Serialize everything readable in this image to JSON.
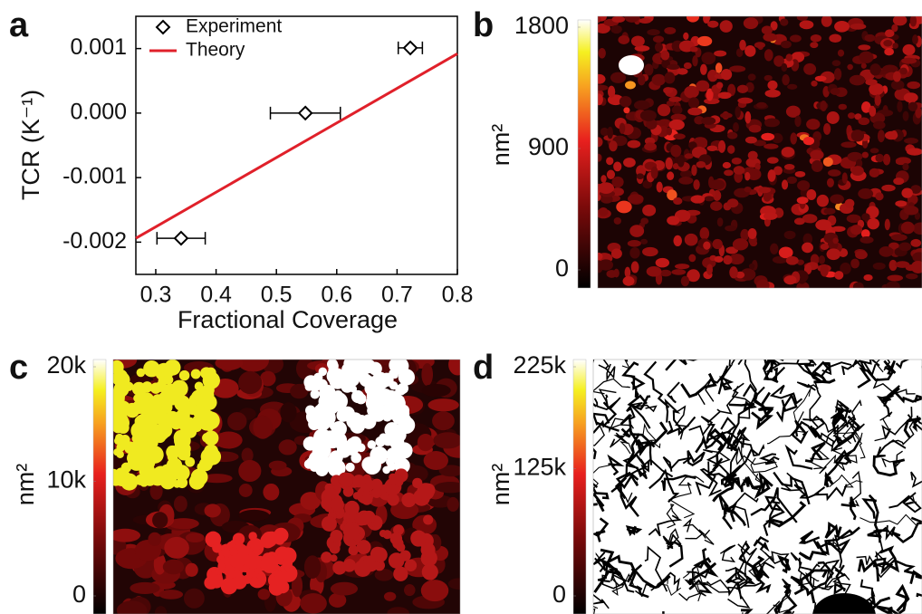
{
  "chart_data": [
    {
      "type": "scatter",
      "panel": "a",
      "xlabel": "Fractional Coverage",
      "ylabel": "TCR (K⁻¹)",
      "xlim": [
        0.267,
        0.8
      ],
      "ylim": [
        -0.0025,
        0.0015
      ],
      "xticks": [
        0.3,
        0.4,
        0.5,
        0.6,
        0.7,
        0.8
      ],
      "yticks": [
        -0.002,
        -0.001,
        {
          "value": 0,
          "label": "0.000"
        },
        0.001
      ],
      "legend": "upper left",
      "series": [
        {
          "name": "Experiment",
          "color": "#000000",
          "x": [
            0.342,
            0.548,
            0.722
          ],
          "values": [
            -0.00194,
            0.0,
            0.00101
          ],
          "xerr": [
            0.04,
            0.058,
            0.02
          ]
        },
        {
          "name": "Theory",
          "color": "#e0202a",
          "x": [
            0.267,
            0.8
          ],
          "values": [
            -0.00194,
            0.00092
          ]
        }
      ]
    },
    {
      "type": "image",
      "panel": "b",
      "colorbar_label": "nm²",
      "clim": [
        0,
        1800
      ],
      "cticks": [
        0,
        900,
        1800
      ]
    },
    {
      "type": "image",
      "panel": "c",
      "colorbar_label": "nm²",
      "clim": [
        0,
        20000
      ],
      "cticks": [
        0,
        {
          "value": 10000,
          "label": "10k"
        },
        {
          "value": 20000,
          "label": "20k"
        }
      ]
    },
    {
      "type": "image",
      "panel": "d",
      "colorbar_label": "nm²",
      "clim": [
        0,
        225000
      ],
      "cticks": [
        0,
        {
          "value": 125000,
          "label": "125k"
        },
        {
          "value": 225000,
          "label": "225k"
        }
      ]
    }
  ]
}
